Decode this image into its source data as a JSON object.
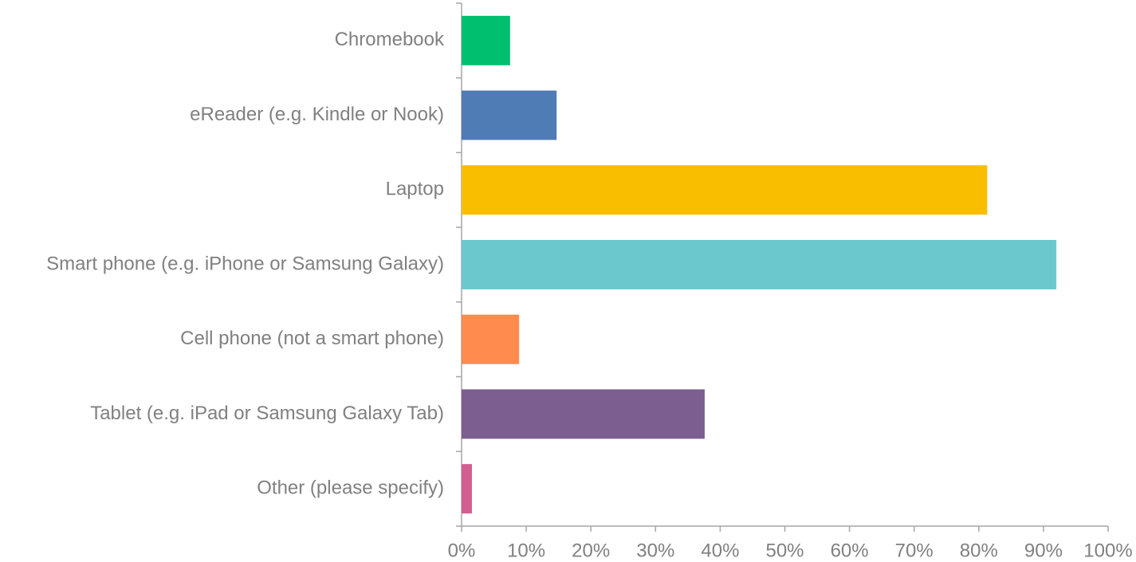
{
  "chart_data": {
    "type": "barh",
    "categories": [
      "Chromebook",
      "eReader (e.g. Kindle or Nook)",
      "Laptop",
      "Smart phone (e.g. iPhone or Samsung Galaxy)",
      "Cell phone (not a smart phone)",
      "Tablet (e.g. iPad or Samsung Galaxy Tab)",
      "Other (please specify)"
    ],
    "values": [
      7.5,
      14.7,
      81.3,
      92.0,
      8.9,
      37.6,
      1.6
    ],
    "colors": [
      "#00bf6f",
      "#507cb6",
      "#f9be00",
      "#6bc8cd",
      "#ff8b4f",
      "#7d5e90",
      "#d25f90"
    ],
    "xlim": [
      0,
      100
    ],
    "xticks": [
      {
        "value": 0,
        "label": "0%"
      },
      {
        "value": 10,
        "label": "10%"
      },
      {
        "value": 20,
        "label": "20%"
      },
      {
        "value": 30,
        "label": "30%"
      },
      {
        "value": 40,
        "label": "40%"
      },
      {
        "value": 50,
        "label": "50%"
      },
      {
        "value": 60,
        "label": "60%"
      },
      {
        "value": 70,
        "label": "70%"
      },
      {
        "value": 80,
        "label": "80%"
      },
      {
        "value": 90,
        "label": "90%"
      },
      {
        "value": 100,
        "label": "100%"
      }
    ]
  }
}
